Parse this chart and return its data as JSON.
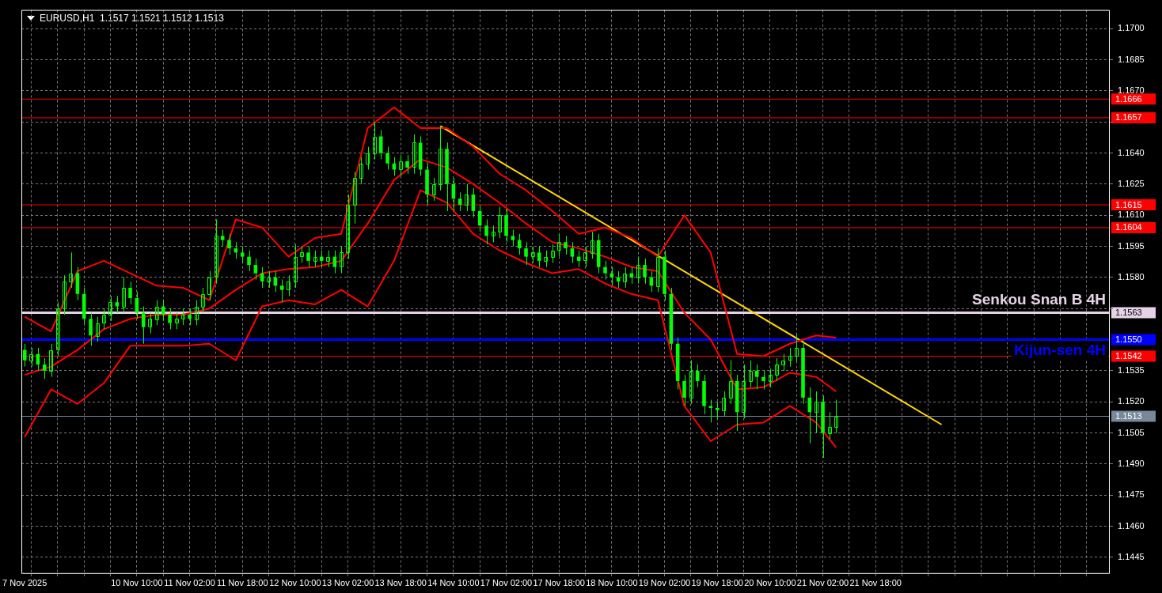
{
  "chart_data": {
    "type": "candlestick",
    "title": "EURUSD,H1  1.1517 1.1521 1.1512 1.1513",
    "categories": [
      "7 Nov 2025",
      null,
      null,
      null,
      null,
      null,
      null,
      null,
      null,
      null,
      null,
      null,
      null,
      null,
      null,
      null,
      null,
      "10 Nov 10:00",
      null,
      null,
      null,
      null,
      null,
      null,
      null,
      "11 Nov 02:00",
      null,
      null,
      null,
      null,
      null,
      null,
      null,
      "11 Nov 18:00",
      null,
      null,
      null,
      null,
      null,
      null,
      null,
      "12 Nov 10:00",
      null,
      null,
      null,
      null,
      null,
      null,
      null,
      "13 Nov 02:00",
      null,
      null,
      null,
      null,
      null,
      null,
      null,
      "13 Nov 18:00",
      null,
      null,
      null,
      null,
      null,
      null,
      null,
      "14 Nov 10:00",
      null,
      null,
      null,
      null,
      null,
      null,
      null,
      "17 Nov 02:00",
      null,
      null,
      null,
      null,
      null,
      null,
      null,
      "17 Nov 18:00",
      null,
      null,
      null,
      null,
      null,
      null,
      null,
      "18 Nov 10:00",
      null,
      null,
      null,
      null,
      null,
      null,
      null,
      "19 Nov 02:00",
      null,
      null,
      null,
      null,
      null,
      null,
      null,
      "19 Nov 18:00",
      null,
      null,
      null,
      null,
      null,
      null,
      null,
      "20 Nov 10:00",
      null,
      null,
      null,
      null,
      null,
      null,
      null,
      "21 Nov 02:00",
      null,
      null,
      null,
      null,
      null,
      null,
      null,
      "21 Nov 18:00",
      null,
      null,
      null,
      null,
      null,
      null,
      null,
      null,
      null,
      null,
      null,
      null,
      null,
      null,
      null,
      null,
      null,
      null,
      null,
      null,
      null,
      null,
      null,
      null,
      null,
      null,
      null,
      null,
      null,
      null,
      null,
      null,
      null,
      null,
      null
    ],
    "ohlc": [
      [
        1.1545,
        1.1548,
        1.1537,
        1.154
      ],
      [
        1.154,
        1.1546,
        1.1537,
        1.1543
      ],
      [
        1.1543,
        1.1546,
        1.1535,
        1.1538
      ],
      [
        1.1538,
        1.1541,
        1.1531,
        1.1535
      ],
      [
        1.1535,
        1.1548,
        1.1532,
        1.1545
      ],
      [
        1.1545,
        1.1568,
        1.1542,
        1.1565
      ],
      [
        1.1565,
        1.1581,
        1.1562,
        1.1578
      ],
      [
        1.1578,
        1.1592,
        1.1575,
        1.1582
      ],
      [
        1.1582,
        1.1585,
        1.1569,
        1.1572
      ],
      [
        1.1572,
        1.1575,
        1.1557,
        1.156
      ],
      [
        1.156,
        1.1563,
        1.1547,
        1.1552
      ],
      [
        1.1552,
        1.1561,
        1.1549,
        1.1558
      ],
      [
        1.1558,
        1.1565,
        1.1555,
        1.1562
      ],
      [
        1.1562,
        1.1571,
        1.1559,
        1.1568
      ],
      [
        1.1568,
        1.1571,
        1.1563,
        1.1566
      ],
      [
        1.1566,
        1.158,
        1.1563,
        1.1575
      ],
      [
        1.1575,
        1.1578,
        1.1567,
        1.157
      ],
      [
        1.157,
        1.1573,
        1.156,
        1.1563
      ],
      [
        1.1563,
        1.1566,
        1.1548,
        1.1556
      ],
      [
        1.1556,
        1.1563,
        1.1553,
        1.156
      ],
      [
        1.156,
        1.1569,
        1.1557,
        1.1566
      ],
      [
        1.1566,
        1.1569,
        1.1559,
        1.1562
      ],
      [
        1.1562,
        1.1565,
        1.1555,
        1.1558
      ],
      [
        1.1558,
        1.1563,
        1.1555,
        1.156
      ],
      [
        1.156,
        1.1565,
        1.1557,
        1.1562
      ],
      [
        1.1562,
        1.1565,
        1.1557,
        1.156
      ],
      [
        1.156,
        1.1569,
        1.1557,
        1.1566
      ],
      [
        1.1566,
        1.1575,
        1.1563,
        1.1572
      ],
      [
        1.1572,
        1.1583,
        1.1569,
        1.158
      ],
      [
        1.158,
        1.1608,
        1.1577,
        1.16
      ],
      [
        1.16,
        1.1603,
        1.1595,
        1.1598
      ],
      [
        1.1598,
        1.1601,
        1.1591,
        1.1594
      ],
      [
        1.1594,
        1.1597,
        1.1589,
        1.1592
      ],
      [
        1.1592,
        1.1595,
        1.1587,
        1.159
      ],
      [
        1.159,
        1.1593,
        1.1583,
        1.1586
      ],
      [
        1.1586,
        1.1589,
        1.1579,
        1.1582
      ],
      [
        1.1582,
        1.1585,
        1.1575,
        1.1578
      ],
      [
        1.1578,
        1.1583,
        1.1575,
        1.158
      ],
      [
        1.158,
        1.1583,
        1.1573,
        1.1576
      ],
      [
        1.1576,
        1.1579,
        1.1568,
        1.1574
      ],
      [
        1.1574,
        1.1581,
        1.1571,
        1.1578
      ],
      [
        1.1578,
        1.1596,
        1.1575,
        1.159
      ],
      [
        1.159,
        1.1595,
        1.1587,
        1.1592
      ],
      [
        1.1592,
        1.1595,
        1.1585,
        1.1588
      ],
      [
        1.1588,
        1.1593,
        1.1585,
        1.159
      ],
      [
        1.159,
        1.1593,
        1.1585,
        1.1588
      ],
      [
        1.1588,
        1.1593,
        1.1585,
        1.159
      ],
      [
        1.159,
        1.1593,
        1.1582,
        1.1585
      ],
      [
        1.1585,
        1.1595,
        1.1582,
        1.1592
      ],
      [
        1.1592,
        1.162,
        1.1589,
        1.1615
      ],
      [
        1.1615,
        1.1631,
        1.1606,
        1.1628
      ],
      [
        1.1628,
        1.1638,
        1.1625,
        1.1635
      ],
      [
        1.1635,
        1.1643,
        1.1632,
        1.164
      ],
      [
        1.164,
        1.1655,
        1.1637,
        1.1648
      ],
      [
        1.1648,
        1.1651,
        1.1637,
        1.164
      ],
      [
        1.164,
        1.1643,
        1.1632,
        1.1635
      ],
      [
        1.1635,
        1.1638,
        1.1629,
        1.1632
      ],
      [
        1.1632,
        1.1639,
        1.1629,
        1.1636
      ],
      [
        1.1636,
        1.1639,
        1.163,
        1.1633
      ],
      [
        1.1633,
        1.1649,
        1.163,
        1.1645
      ],
      [
        1.1645,
        1.1648,
        1.1629,
        1.1632
      ],
      [
        1.1632,
        1.1635,
        1.1615,
        1.162
      ],
      [
        1.162,
        1.1628,
        1.1617,
        1.1625
      ],
      [
        1.1625,
        1.1653,
        1.1622,
        1.1642
      ],
      [
        1.1642,
        1.1645,
        1.1612,
        1.1625
      ],
      [
        1.1625,
        1.1628,
        1.1612,
        1.1618
      ],
      [
        1.1618,
        1.1621,
        1.1612,
        1.1615
      ],
      [
        1.1615,
        1.1625,
        1.1612,
        1.162
      ],
      [
        1.162,
        1.1623,
        1.1609,
        1.1612
      ],
      [
        1.1612,
        1.1615,
        1.1602,
        1.1605
      ],
      [
        1.1605,
        1.1608,
        1.1596,
        1.16
      ],
      [
        1.16,
        1.1605,
        1.1597,
        1.1602
      ],
      [
        1.1602,
        1.1614,
        1.1599,
        1.161
      ],
      [
        1.161,
        1.1613,
        1.1597,
        1.16
      ],
      [
        1.16,
        1.1603,
        1.1595,
        1.1598
      ],
      [
        1.1598,
        1.1601,
        1.1591,
        1.1594
      ],
      [
        1.1594,
        1.1597,
        1.1586,
        1.159
      ],
      [
        1.159,
        1.1595,
        1.1587,
        1.1592
      ],
      [
        1.1592,
        1.1595,
        1.1585,
        1.1588
      ],
      [
        1.1588,
        1.1593,
        1.1585,
        1.159
      ],
      [
        1.159,
        1.1596,
        1.1587,
        1.1593
      ],
      [
        1.1593,
        1.1601,
        1.159,
        1.1597
      ],
      [
        1.1597,
        1.16,
        1.1591,
        1.1594
      ],
      [
        1.1594,
        1.1597,
        1.1587,
        1.159
      ],
      [
        1.159,
        1.1593,
        1.1585,
        1.1588
      ],
      [
        1.1588,
        1.1595,
        1.1585,
        1.1592
      ],
      [
        1.1592,
        1.1602,
        1.1589,
        1.1598
      ],
      [
        1.1598,
        1.1601,
        1.1582,
        1.1585
      ],
      [
        1.1585,
        1.1588,
        1.1579,
        1.1582
      ],
      [
        1.1582,
        1.1585,
        1.1576,
        1.158
      ],
      [
        1.158,
        1.1583,
        1.1575,
        1.1578
      ],
      [
        1.1578,
        1.1585,
        1.1575,
        1.1582
      ],
      [
        1.1582,
        1.1585,
        1.1577,
        1.158
      ],
      [
        1.158,
        1.159,
        1.1577,
        1.1586
      ],
      [
        1.1586,
        1.1589,
        1.1577,
        1.158
      ],
      [
        1.158,
        1.1583,
        1.1573,
        1.1576
      ],
      [
        1.1576,
        1.1594,
        1.1573,
        1.159
      ],
      [
        1.159,
        1.1593,
        1.1569,
        1.1572
      ],
      [
        1.1572,
        1.1575,
        1.1545,
        1.1548
      ],
      [
        1.1548,
        1.1551,
        1.1526,
        1.153
      ],
      [
        1.153,
        1.1533,
        1.1518,
        1.1522
      ],
      [
        1.1522,
        1.154,
        1.1519,
        1.1535
      ],
      [
        1.1535,
        1.1538,
        1.1527,
        1.153
      ],
      [
        1.153,
        1.1533,
        1.1514,
        1.1518
      ],
      [
        1.1518,
        1.1521,
        1.151,
        1.1517
      ],
      [
        1.1517,
        1.152,
        1.1512,
        1.1516
      ],
      [
        1.1516,
        1.1525,
        1.1513,
        1.1522
      ],
      [
        1.1522,
        1.154,
        1.1519,
        1.153
      ],
      [
        1.153,
        1.1533,
        1.1506,
        1.1515
      ],
      [
        1.1515,
        1.1538,
        1.1512,
        1.153
      ],
      [
        1.153,
        1.154,
        1.1527,
        1.1535
      ],
      [
        1.1535,
        1.1538,
        1.1526,
        1.1532
      ],
      [
        1.1532,
        1.1535,
        1.1526,
        1.153
      ],
      [
        1.153,
        1.1536,
        1.1527,
        1.1533
      ],
      [
        1.1533,
        1.1541,
        1.153,
        1.1538
      ],
      [
        1.1538,
        1.1543,
        1.1535,
        1.154
      ],
      [
        1.154,
        1.1546,
        1.1537,
        1.1542
      ],
      [
        1.1542,
        1.1553,
        1.1539,
        1.1546
      ],
      [
        1.1546,
        1.1549,
        1.1519,
        1.1522
      ],
      [
        1.1522,
        1.1527,
        1.15,
        1.1515
      ],
      [
        1.1515,
        1.1525,
        1.1505,
        1.152
      ],
      [
        1.152,
        1.1523,
        1.1493,
        1.1505
      ],
      [
        1.1505,
        1.1515,
        1.1502,
        1.1508
      ],
      [
        1.1508,
        1.1521,
        1.1505,
        1.1513
      ],
      null,
      null,
      null,
      null,
      null,
      null,
      null,
      null,
      null,
      null,
      null,
      null,
      null,
      null,
      null,
      null,
      null,
      null,
      null,
      null,
      null,
      null,
      null,
      null,
      null,
      null,
      null,
      null,
      null,
      null,
      null,
      null,
      null,
      null,
      null,
      null,
      null,
      null,
      null,
      null,
      null
    ],
    "color": "#00ff00",
    "series": [
      {
        "type": "line",
        "color": "#ff0000",
        "values": [
          1.1561,
          null,
          null,
          null,
          1.1554,
          null,
          null,
          null,
          1.1583,
          null,
          null,
          null,
          1.1588,
          null,
          null,
          null,
          1.1582,
          null,
          null,
          null,
          1.1576,
          null,
          null,
          null,
          1.1575,
          null,
          null,
          null,
          1.1569,
          null,
          null,
          null,
          1.1608,
          null,
          null,
          null,
          1.1604,
          null,
          null,
          null,
          1.159,
          null,
          null,
          null,
          1.1599,
          null,
          null,
          null,
          1.1601,
          null,
          null,
          null,
          1.1652,
          null,
          null,
          null,
          1.1662,
          null,
          null,
          null,
          1.1652,
          null,
          null,
          null,
          1.1652,
          null,
          null,
          null,
          1.1643,
          null,
          null,
          null,
          1.163,
          null,
          null,
          null,
          1.1622,
          null,
          null,
          null,
          1.1612,
          null,
          null,
          null,
          1.1601,
          null,
          null,
          null,
          1.1604,
          null,
          null,
          null,
          1.1599,
          null,
          null,
          null,
          1.159,
          null,
          null,
          null,
          1.161,
          null,
          null,
          null,
          1.1592,
          null,
          null,
          null,
          1.1543,
          null,
          null,
          null,
          1.1542,
          null,
          null,
          null,
          1.1548,
          null,
          null,
          null,
          1.1552,
          null,
          null,
          1.1551,
          null,
          null,
          null,
          null,
          null,
          null,
          null,
          null,
          null,
          null,
          null,
          null,
          null,
          null,
          null,
          null,
          null,
          null,
          null,
          null,
          null,
          null,
          null,
          null,
          null,
          null,
          null,
          null,
          null,
          null,
          null,
          null,
          null,
          null,
          null,
          null,
          null,
          null,
          null,
          null,
          null
        ]
      },
      {
        "type": "line",
        "color": "#ff0000",
        "values": [
          1.1533,
          null,
          null,
          null,
          1.1537,
          null,
          null,
          null,
          1.1545,
          null,
          null,
          null,
          1.1555,
          null,
          null,
          null,
          1.156,
          null,
          null,
          null,
          1.1562,
          null,
          null,
          null,
          1.1562,
          null,
          null,
          null,
          1.1565,
          null,
          null,
          null,
          1.1574,
          null,
          null,
          null,
          1.1582,
          null,
          null,
          null,
          1.1584,
          null,
          null,
          null,
          1.1585,
          null,
          null,
          null,
          1.1588,
          null,
          null,
          null,
          1.1606,
          null,
          null,
          null,
          1.1627,
          null,
          null,
          null,
          1.1637,
          null,
          null,
          null,
          1.1633,
          null,
          null,
          null,
          1.1625,
          null,
          null,
          null,
          1.1616,
          null,
          null,
          null,
          1.1606,
          null,
          null,
          null,
          1.1597,
          null,
          null,
          null,
          1.1594,
          null,
          null,
          null,
          1.159,
          null,
          null,
          null,
          1.1585,
          null,
          null,
          null,
          1.1583,
          null,
          null,
          null,
          1.1563,
          null,
          null,
          null,
          1.155,
          null,
          null,
          null,
          1.1526,
          null,
          null,
          null,
          1.1527,
          null,
          null,
          null,
          1.1534,
          null,
          null,
          null,
          1.1532,
          null,
          null,
          1.1525,
          null,
          null,
          null,
          null,
          null,
          null,
          null,
          null,
          null,
          null,
          null,
          null,
          null,
          null,
          null,
          null,
          null,
          null,
          null,
          null,
          null,
          null,
          null,
          null,
          null,
          null,
          null,
          null,
          null,
          null,
          null,
          null,
          null,
          null,
          null,
          null,
          null,
          null,
          null,
          null,
          null
        ]
      },
      {
        "type": "line",
        "color": "#ff0000",
        "values": [
          1.1503,
          null,
          null,
          null,
          1.1526,
          null,
          null,
          null,
          1.1519,
          null,
          null,
          null,
          1.1529,
          null,
          null,
          null,
          1.1547,
          null,
          null,
          null,
          1.1547,
          null,
          null,
          null,
          1.1547,
          null,
          null,
          null,
          1.1548,
          null,
          null,
          null,
          1.154,
          null,
          null,
          null,
          1.1566,
          null,
          null,
          null,
          1.1569,
          null,
          null,
          null,
          1.1567,
          null,
          null,
          null,
          1.1574,
          null,
          null,
          null,
          1.1566,
          null,
          null,
          null,
          1.1588,
          null,
          null,
          null,
          1.1622,
          null,
          null,
          null,
          1.1616,
          null,
          null,
          null,
          1.1601,
          null,
          null,
          null,
          1.1593,
          null,
          null,
          null,
          1.1587,
          null,
          null,
          null,
          1.1582,
          null,
          null,
          null,
          1.1584,
          null,
          null,
          null,
          1.1577,
          null,
          null,
          null,
          1.1572,
          null,
          null,
          null,
          1.1569,
          null,
          null,
          null,
          1.1518,
          null,
          null,
          null,
          1.1501,
          null,
          null,
          null,
          1.1509,
          null,
          null,
          null,
          1.151,
          null,
          null,
          null,
          1.1518,
          null,
          null,
          null,
          1.151,
          null,
          null,
          1.1498,
          null,
          null,
          null,
          null,
          null,
          null,
          null,
          null,
          null,
          null,
          null,
          null,
          null,
          null,
          null,
          null,
          null,
          null,
          null,
          null,
          null,
          null,
          null,
          null,
          null,
          null,
          null,
          null,
          null,
          null,
          null,
          null,
          null,
          null,
          null,
          null,
          null,
          null,
          null,
          null,
          null
        ]
      },
      {
        "type": "line",
        "color": "#ffd700",
        "values": [
          null,
          null,
          null,
          null,
          null,
          null,
          null,
          null,
          null,
          null,
          null,
          null,
          null,
          null,
          null,
          null,
          null,
          null,
          null,
          null,
          null,
          null,
          null,
          null,
          null,
          null,
          null,
          null,
          null,
          null,
          null,
          null,
          null,
          null,
          null,
          null,
          null,
          null,
          null,
          null,
          null,
          null,
          null,
          null,
          null,
          null,
          null,
          null,
          null,
          null,
          null,
          null,
          null,
          null,
          null,
          null,
          null,
          null,
          null,
          null,
          null,
          null,
          null,
          1.1653,
          null,
          null,
          null,
          null,
          null,
          null,
          null,
          null,
          null,
          null,
          null,
          null,
          null,
          null,
          null,
          null,
          null,
          null,
          null,
          null,
          null,
          null,
          null,
          null,
          null,
          null,
          null,
          null,
          null,
          null,
          null,
          null,
          null,
          null,
          null,
          null,
          null,
          null,
          null,
          null,
          null,
          null,
          null,
          null,
          null,
          null,
          null,
          null,
          null,
          null,
          null,
          null,
          null,
          null,
          null,
          null,
          null,
          null,
          null,
          null,
          null,
          null,
          null,
          null,
          null,
          null,
          null,
          null,
          null,
          null,
          null,
          null,
          null,
          null,
          null,
          1.1509,
          null,
          null,
          null,
          null,
          null,
          null,
          null,
          null,
          null,
          null,
          null,
          null,
          null,
          null,
          null,
          null,
          null,
          null,
          null,
          null,
          null,
          null,
          null,
          null,
          null
        ]
      }
    ],
    "ylim": [
      1.1437,
      1.1709
    ],
    "yticks": [
      {
        "value": 1.1445,
        "label": "1.1445"
      },
      {
        "value": 1.146,
        "label": "1.1460"
      },
      {
        "value": 1.1475,
        "label": "1.1475"
      },
      {
        "value": 1.149,
        "label": "1.1490"
      },
      {
        "value": 1.1505,
        "label": "1.1505"
      },
      {
        "value": 1.152,
        "label": "1.1520"
      },
      {
        "value": 1.1535,
        "label": "1.1535"
      },
      {
        "value": 1.155,
        "label": null
      },
      {
        "value": 1.1565,
        "label": null
      },
      {
        "value": 1.158,
        "label": "1.1580"
      },
      {
        "value": 1.1595,
        "label": "1.1595"
      },
      {
        "value": 1.161,
        "label": "1.1610"
      },
      {
        "value": 1.1625,
        "label": "1.1625"
      },
      {
        "value": 1.164,
        "label": "1.1640"
      },
      {
        "value": 1.1655,
        "label": null
      },
      {
        "value": 1.167,
        "label": "1.1670"
      },
      {
        "value": 1.1685,
        "label": "1.1685"
      },
      {
        "value": 1.17,
        "label": "1.1700"
      }
    ],
    "ref_lines": [
      {
        "axis": "y",
        "value": 1.1666,
        "color": "#ff0000",
        "label": "1.1666"
      },
      {
        "axis": "y",
        "value": 1.1657,
        "color": "#ff0000",
        "label": "1.1657"
      },
      {
        "axis": "y",
        "value": 1.1615,
        "color": "#ff0000",
        "label": "1.1615"
      },
      {
        "axis": "y",
        "value": 1.1604,
        "color": "#ff0000",
        "label": "1.1604"
      },
      {
        "axis": "y",
        "value": 1.1563,
        "color": "#e6d2e6",
        "label": "1.1563"
      },
      {
        "axis": "y",
        "value": 1.155,
        "color": "#0000ff",
        "label": "1.1550"
      },
      {
        "axis": "y",
        "value": 1.1542,
        "color": "#ff0000",
        "label": "1.1542"
      },
      {
        "axis": "y",
        "value": 1.1513,
        "color": "#778899",
        "label": "1.1513"
      }
    ],
    "annotations": [
      {
        "text": "Senkou Snan B 4H",
        "y": 1.1563
      },
      {
        "text": "Kijun-sen 4H",
        "y": 1.155
      }
    ],
    "grid": true,
    "marker": "none"
  }
}
